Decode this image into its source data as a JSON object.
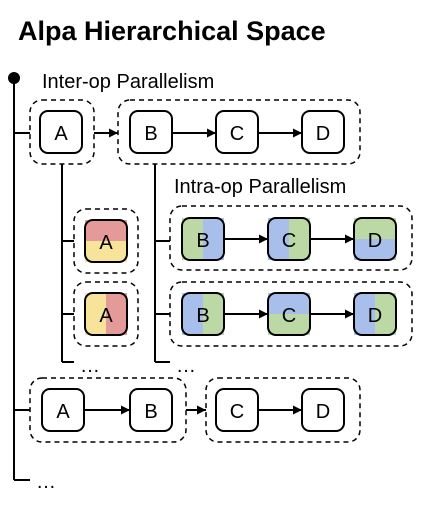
{
  "title": "Alpa Hierarchical Space",
  "inter_op_label": "Inter-op Parallelism",
  "intra_op_label": "Intra-op Parallelism",
  "ellipsis": "…",
  "nodes": {
    "a": "A",
    "b": "B",
    "c": "C",
    "d": "D"
  },
  "colors": {
    "red": "#e59a9a",
    "yellow": "#f7e49a",
    "green": "#bcd9a5",
    "blue": "#a9bfeb",
    "stroke": "#000000"
  }
}
